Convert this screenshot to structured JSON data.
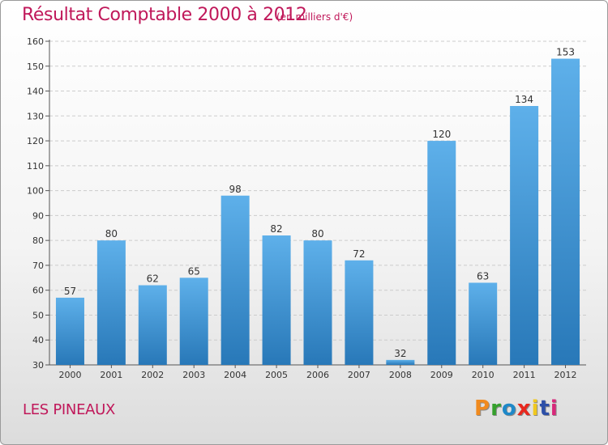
{
  "header": {
    "title": "Résultat Comptable 2000 à 2012",
    "subtitle": "(en milliers d'€)"
  },
  "footer": {
    "commune": "LES PINEAUX",
    "logo_letters": [
      "P",
      "r",
      "o",
      "x",
      "i",
      "t",
      "i"
    ]
  },
  "colors": {
    "bar_top": "#5eb0ea",
    "bar_bottom": "#2878b8",
    "title": "#c0185a",
    "grid": "#cccccc"
  },
  "chart_data": {
    "type": "bar",
    "title": "Résultat Comptable 2000 à 2012",
    "subtitle": "(en milliers d'€)",
    "xlabel": "",
    "ylabel": "",
    "categories": [
      "2000",
      "2001",
      "2002",
      "2003",
      "2004",
      "2005",
      "2006",
      "2007",
      "2008",
      "2009",
      "2010",
      "2011",
      "2012"
    ],
    "values": [
      57,
      80,
      62,
      65,
      98,
      82,
      80,
      72,
      32,
      120,
      63,
      134,
      153
    ],
    "ylim": [
      30,
      160
    ],
    "yticks": [
      30,
      40,
      50,
      60,
      70,
      80,
      90,
      100,
      110,
      120,
      130,
      140,
      150,
      160
    ],
    "grid": true,
    "grid_axis": "y"
  }
}
